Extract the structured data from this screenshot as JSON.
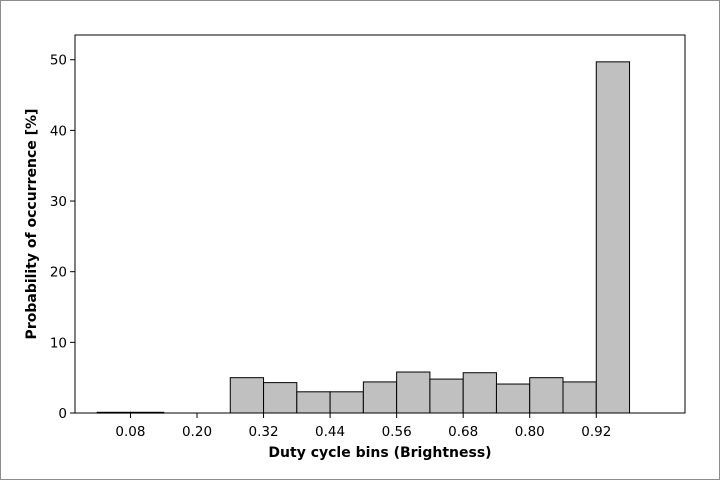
{
  "chart_data": {
    "type": "bar",
    "title": "",
    "xlabel": "Duty cycle bins (Brightness)",
    "ylabel": "Probability of occurrence [%]",
    "bin_width": 0.06,
    "bin_left_edges": [
      0.02,
      0.08,
      0.14,
      0.2,
      0.26,
      0.32,
      0.38,
      0.44,
      0.5,
      0.56,
      0.62,
      0.68,
      0.74,
      0.8,
      0.86,
      0.92,
      0.98
    ],
    "values": [
      0.1,
      0.1,
      0.0,
      0.0,
      5.0,
      4.3,
      3.0,
      3.0,
      4.4,
      5.8,
      4.8,
      5.7,
      4.1,
      5.0,
      4.4,
      49.7,
      0.0
    ],
    "xlim": [
      -0.02,
      1.08
    ],
    "ylim": [
      0,
      53.5
    ],
    "x_ticks": [
      0.08,
      0.2,
      0.32,
      0.44,
      0.56,
      0.68,
      0.8,
      0.92
    ],
    "x_tick_labels": [
      "0.08",
      "0.20",
      "0.32",
      "0.44",
      "0.56",
      "0.68",
      "0.80",
      "0.92"
    ],
    "y_ticks": [
      0,
      10,
      20,
      30,
      40,
      50
    ],
    "y_tick_labels": [
      "0",
      "10",
      "20",
      "30",
      "40",
      "50"
    ],
    "grid": false,
    "legend": "none",
    "bar_fill": "#c0c0c0",
    "bar_edge": "#000000"
  }
}
